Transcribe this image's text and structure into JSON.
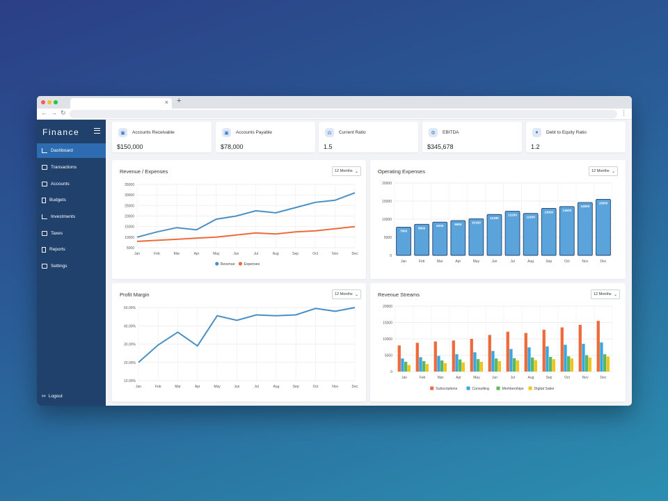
{
  "browser": {
    "new_tab": "+",
    "tab_close": "×"
  },
  "app": {
    "logo": "Finance"
  },
  "sidebar": {
    "items": [
      {
        "label": "Dashboard",
        "icon": "dashboard-icon",
        "active": true
      },
      {
        "label": "Transactions",
        "icon": "transactions-icon"
      },
      {
        "label": "Accounts",
        "icon": "accounts-icon"
      },
      {
        "label": "Budgets",
        "icon": "budgets-icon"
      },
      {
        "label": "Investments",
        "icon": "investments-icon"
      },
      {
        "label": "Taxes",
        "icon": "taxes-icon"
      },
      {
        "label": "Reports",
        "icon": "reports-icon"
      },
      {
        "label": "Settings",
        "icon": "settings-icon"
      }
    ],
    "logout": "Logout"
  },
  "kpis": [
    {
      "label": "Accounts Receivable",
      "value": "$150,000",
      "icon": "receivable-icon"
    },
    {
      "label": "Accounts Payable",
      "value": "$78,000",
      "icon": "payable-icon"
    },
    {
      "label": "Current Ratio",
      "value": "1.5",
      "icon": "scale-icon"
    },
    {
      "label": "EBITDA",
      "value": "$345,678",
      "icon": "gears-icon"
    },
    {
      "label": "Debt to Equity Ratio",
      "value": "1.2",
      "icon": "hand-coin-icon"
    }
  ],
  "cards": {
    "rev_exp": {
      "title": "Revenue / Expenses",
      "select": "12 Months"
    },
    "opex": {
      "title": "Operating Expenses",
      "select": "12 Months"
    },
    "profit": {
      "title": "Profit Margin",
      "select": "12 Months"
    },
    "streams": {
      "title": "Revenue Streams",
      "select": "12 Months"
    }
  },
  "colors": {
    "sidebar": "#21416d",
    "active": "#2d6cb1",
    "blue": "#4a8fc4",
    "orange": "#ee6a3a",
    "cyan": "#3aa6df",
    "green": "#5cb85c",
    "yellow": "#f2c318"
  },
  "chart_data": [
    {
      "type": "line",
      "title": "Revenue / Expenses",
      "categories": [
        "Jan",
        "Feb",
        "Mar",
        "Apr",
        "May",
        "Jun",
        "Jul",
        "Aug",
        "Sep",
        "Oct",
        "Nov",
        "Dec"
      ],
      "yticks": [
        "5000",
        "10000",
        "15000",
        "20000",
        "25000",
        "30000",
        "35000"
      ],
      "ylim": [
        5000,
        35000
      ],
      "series": [
        {
          "name": "Revenue",
          "color": "#4a8fc4",
          "values": [
            10000,
            12500,
            14500,
            13500,
            18500,
            20000,
            22500,
            21500,
            24000,
            26500,
            27500,
            31000
          ]
        },
        {
          "name": "Expenses",
          "color": "#ee6a3a",
          "values": [
            8000,
            8500,
            9000,
            9500,
            10000,
            11000,
            12000,
            11500,
            12500,
            13000,
            14000,
            15000
          ]
        }
      ],
      "legend": "bottom"
    },
    {
      "type": "bar",
      "title": "Operating Expenses",
      "categories": [
        "Jan",
        "Feb",
        "Mar",
        "Apr",
        "May",
        "Jun",
        "Jul",
        "Aug",
        "Sep",
        "Oct",
        "Nov",
        "Dec"
      ],
      "yticks": [
        "0",
        "5000",
        "10000",
        "15000",
        "20000"
      ],
      "ylim": [
        0,
        20000
      ],
      "values": [
        7800,
        8600,
        9200,
        9600,
        10100,
        11300,
        12200,
        11600,
        13000,
        13500,
        14600,
        15500
      ],
      "labels": [
        "7800",
        "8600",
        "9200",
        "9600",
        "10100",
        "11300",
        "12200",
        "11600",
        "13000",
        "13500",
        "14600",
        "15500"
      ]
    },
    {
      "type": "line",
      "title": "Profit Margin",
      "categories": [
        "Jan",
        "Feb",
        "Mar",
        "Apr",
        "May",
        "Jun",
        "Jul",
        "Aug",
        "Sep",
        "Oct",
        "Nov",
        "Dec"
      ],
      "yticks": [
        "10.00%",
        "20.00%",
        "30.00%",
        "40.00%",
        "50.00%"
      ],
      "ylim": [
        10,
        50
      ],
      "series": [
        {
          "color": "#4a8fc4",
          "values": [
            20,
            29.5,
            36.5,
            29,
            45.5,
            43,
            46,
            45.5,
            46,
            49.5,
            48,
            50
          ]
        }
      ]
    },
    {
      "type": "bar",
      "title": "Revenue Streams",
      "categories": [
        "Jan",
        "Feb",
        "Mar",
        "Apr",
        "May",
        "Jun",
        "Jul",
        "Aug",
        "Sep",
        "Oct",
        "Nov",
        "Dec"
      ],
      "yticks": [
        "0",
        "5000",
        "10000",
        "15000",
        "20000"
      ],
      "ylim": [
        0,
        20000
      ],
      "series": [
        {
          "name": "Subscriptions",
          "color": "#ee6a3a",
          "values": [
            8000,
            8800,
            9200,
            9500,
            10000,
            11200,
            12200,
            11800,
            12800,
            13500,
            14300,
            15500
          ]
        },
        {
          "name": "Consulting",
          "color": "#3aa6df",
          "values": [
            4000,
            4400,
            4800,
            5300,
            5900,
            6300,
            6900,
            7400,
            7700,
            8200,
            8500,
            8900
          ]
        },
        {
          "name": "Memberships",
          "color": "#5cb85c",
          "values": [
            3000,
            3200,
            3400,
            3700,
            3800,
            4000,
            4100,
            4300,
            4500,
            4700,
            5000,
            5300
          ]
        },
        {
          "name": "Digital Sales",
          "color": "#f2c318",
          "values": [
            2000,
            2300,
            2600,
            2800,
            3000,
            3200,
            3400,
            3500,
            3800,
            4000,
            4300,
            4600
          ]
        }
      ],
      "legend": "bottom"
    }
  ]
}
